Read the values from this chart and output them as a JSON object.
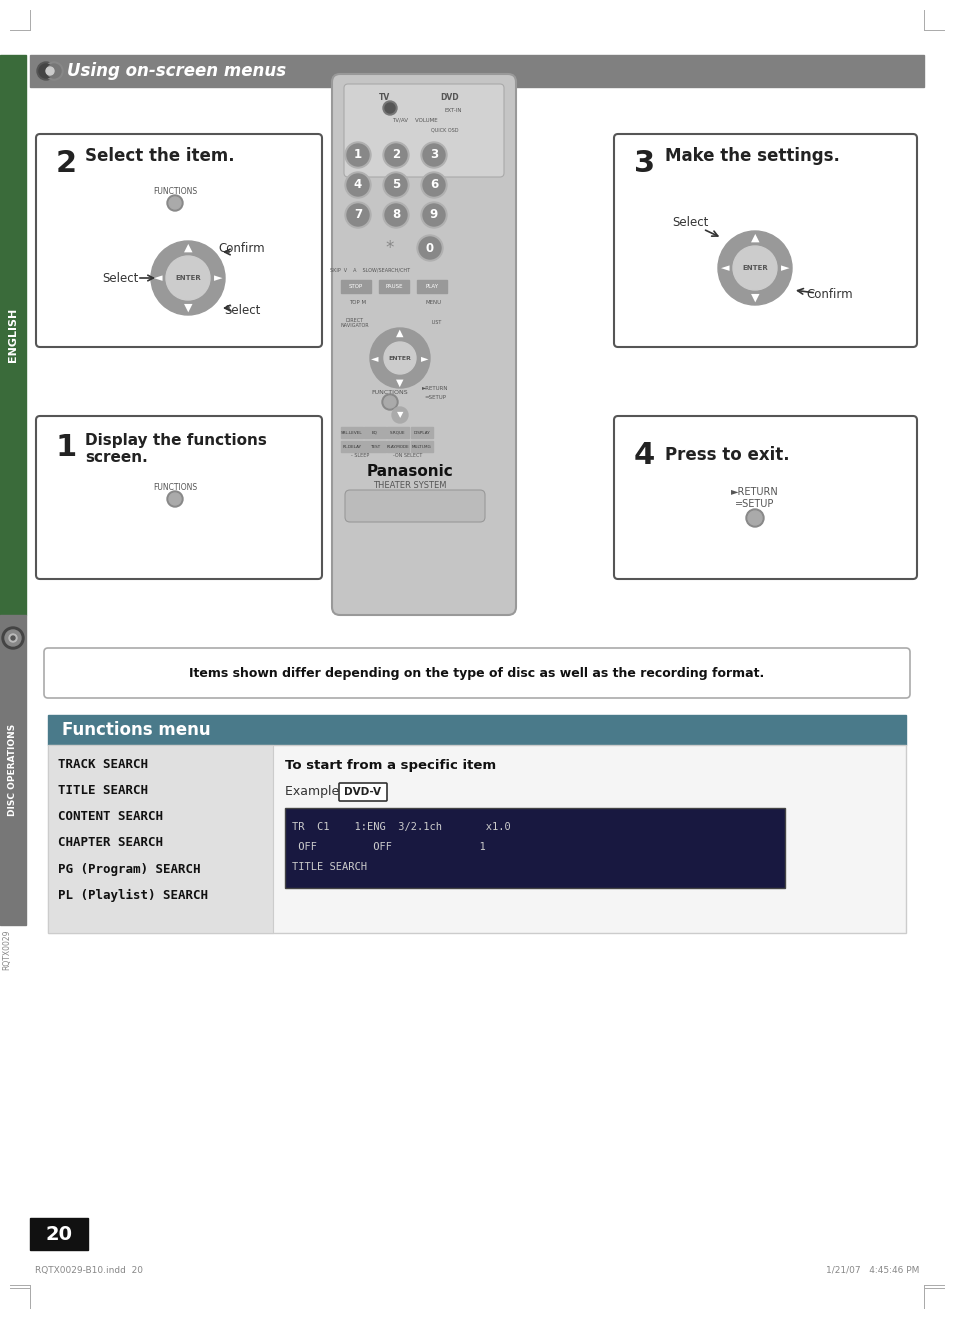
{
  "page_width": 9.54,
  "page_height": 13.18,
  "bg_color": "#ffffff",
  "header_bar_color": "#808080",
  "header_text": "Using on-screen menus",
  "left_sidebar_color": "#3a6b3a",
  "left_sidebar_text": "ENGLISH",
  "left_sidebar2_color": "#777777",
  "left_sidebar2_text": "DISC OPERATIONS",
  "step1_title_num": "1",
  "step1_title_a": "Display the functions",
  "step1_title_b": "screen.",
  "step2_title_num": "2",
  "step2_title": "Select the item.",
  "step3_title_num": "3",
  "step3_title": "Make the settings.",
  "step4_title_num": "4",
  "step4_title": "Press to exit.",
  "notice_text": "Items shown differ depending on the type of disc as well as the recording format.",
  "functions_menu_title": "Functions menu",
  "functions_menu_title_bg": "#4a7a8a",
  "menu_items": [
    "TRACK SEARCH",
    "TITLE SEARCH",
    "CONTENT SEARCH",
    "CHAPTER SEARCH",
    "PG (Program) SEARCH",
    "PL (Playlist) SEARCH"
  ],
  "right_panel_title": "To start from a specific item",
  "right_panel_example_label": "Example: ",
  "right_panel_example_badge": "DVD-V",
  "right_panel_screen_line1": "TR  C1    1:ENG  3/2.1ch       x1.0",
  "right_panel_screen_line2": " OFF         OFF              1",
  "right_panel_screen_line3": "TITLE SEARCH",
  "page_number": "20",
  "bottom_left_text": "RQTX0029-B10.indd  20",
  "bottom_right_text": "1/21/07   4:45:46 PM",
  "rqtx_text": "RQTX0029"
}
